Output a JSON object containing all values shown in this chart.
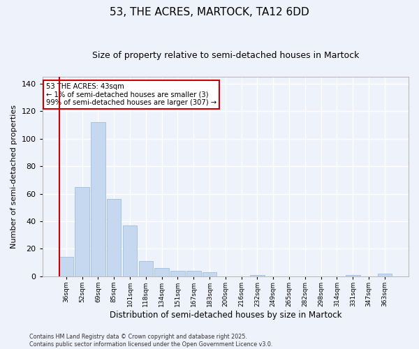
{
  "title": "53, THE ACRES, MARTOCK, TA12 6DD",
  "subtitle": "Size of property relative to semi-detached houses in Martock",
  "xlabel": "Distribution of semi-detached houses by size in Martock",
  "ylabel": "Number of semi-detached properties",
  "categories": [
    "36sqm",
    "52sqm",
    "69sqm",
    "85sqm",
    "101sqm",
    "118sqm",
    "134sqm",
    "151sqm",
    "167sqm",
    "183sqm",
    "200sqm",
    "216sqm",
    "232sqm",
    "249sqm",
    "265sqm",
    "282sqm",
    "298sqm",
    "314sqm",
    "331sqm",
    "347sqm",
    "363sqm"
  ],
  "values": [
    14,
    65,
    112,
    56,
    37,
    11,
    6,
    4,
    4,
    3,
    0,
    0,
    1,
    0,
    0,
    0,
    0,
    0,
    1,
    0,
    2
  ],
  "bar_color": "#c5d8f0",
  "bar_edge_color": "#a8c4e0",
  "marker_color": "#cc0000",
  "ylim": [
    0,
    145
  ],
  "yticks": [
    0,
    20,
    40,
    60,
    80,
    100,
    120,
    140
  ],
  "annotation_title": "53 THE ACRES: 43sqm",
  "annotation_line1": "← 1% of semi-detached houses are smaller (3)",
  "annotation_line2": "99% of semi-detached houses are larger (307) →",
  "annotation_box_color": "#cc0000",
  "footnote1": "Contains HM Land Registry data © Crown copyright and database right 2025.",
  "footnote2": "Contains public sector information licensed under the Open Government Licence v3.0.",
  "bg_color": "#eef2fb",
  "grid_color": "#ffffff",
  "title_fontsize": 11,
  "subtitle_fontsize": 9,
  "tick_fontsize": 6.5,
  "ylabel_fontsize": 8,
  "xlabel_fontsize": 8.5
}
